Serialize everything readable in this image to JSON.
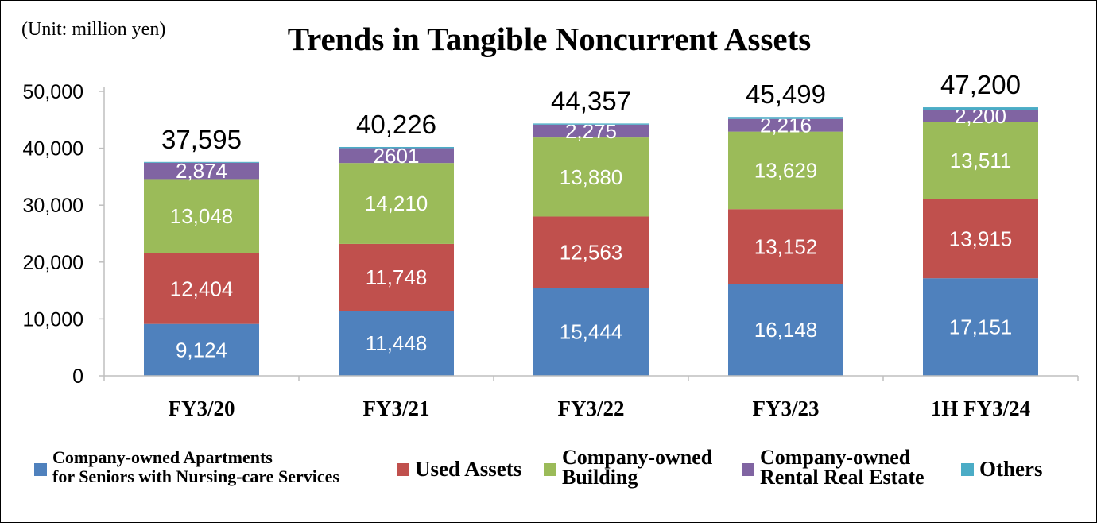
{
  "chart_data": {
    "type": "bar",
    "stacked": true,
    "title": "Trends in Tangible Noncurrent Assets",
    "unit_label": "(Unit: million yen)",
    "categories": [
      "FY3/20",
      "FY3/21",
      "FY3/22",
      "FY3/23",
      "1H FY3/24"
    ],
    "ylim": [
      0,
      50000
    ],
    "yticks": [
      0,
      10000,
      20000,
      30000,
      40000,
      50000
    ],
    "ytick_labels": [
      "0",
      "10,000",
      "20,000",
      "30,000",
      "40,000",
      "50,000"
    ],
    "grid": false,
    "legend_position": "bottom",
    "series": [
      {
        "name": "Company-owned Apartments for Seniors with Nursing-care Services",
        "legend_lines": [
          "Company-owned Apartments",
          "for Seniors with Nursing-care Services"
        ],
        "color": "#4f81bd",
        "values": [
          9124,
          11448,
          15444,
          16148,
          17151
        ],
        "labels": [
          "9,124",
          "11,448",
          "15,444",
          "16,148",
          "17,151"
        ]
      },
      {
        "name": "Used Assets",
        "legend_lines": [
          "Used Assets"
        ],
        "color": "#c0504d",
        "values": [
          12404,
          11748,
          12563,
          13152,
          13915
        ],
        "labels": [
          "12,404",
          "11,748",
          "12,563",
          "13,152",
          "13,915"
        ]
      },
      {
        "name": "Company-owned Building",
        "legend_lines": [
          "Company-owned",
          "Building"
        ],
        "color": "#9bbb59",
        "values": [
          13048,
          14210,
          13880,
          13629,
          13511
        ],
        "labels": [
          "13,048",
          "14,210",
          "13,880",
          "13,629",
          "13,511"
        ]
      },
      {
        "name": "Company-owned Rental Real Estate",
        "legend_lines": [
          "Company-owned",
          "Rental Real Estate"
        ],
        "color": "#8064a2",
        "values": [
          2874,
          2601,
          2275,
          2216,
          2200
        ],
        "labels": [
          "2,874",
          "2601",
          "2,275",
          "2,216",
          "2,200"
        ]
      },
      {
        "name": "Others",
        "legend_lines": [
          "Others"
        ],
        "color": "#4bacc6",
        "values": [
          145,
          219,
          195,
          354,
          423
        ],
        "labels": []
      }
    ],
    "totals": [
      37595,
      40226,
      44357,
      45499,
      47200
    ],
    "total_labels": [
      "37,595",
      "40,226",
      "44,357",
      "45,499",
      "47,200"
    ]
  }
}
